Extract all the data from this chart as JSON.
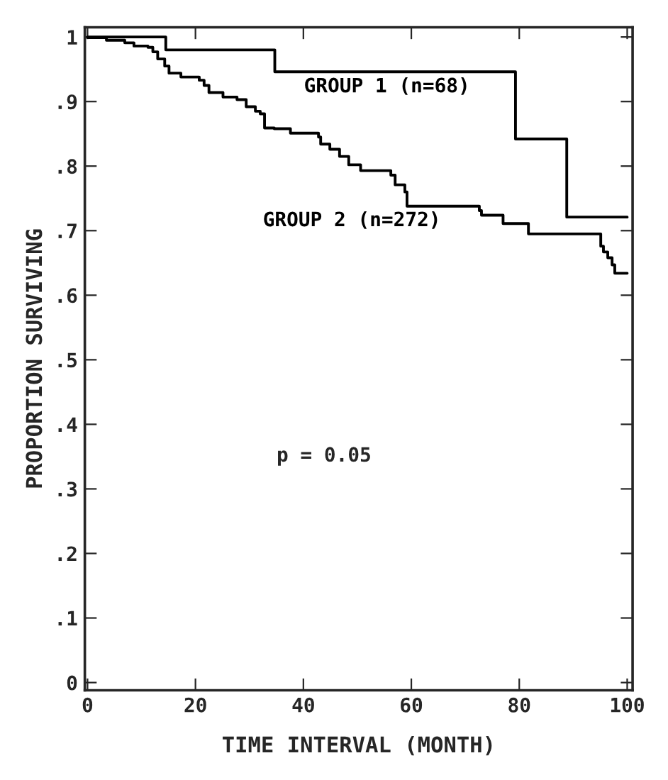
{
  "chart_data": {
    "type": "step",
    "xlabel": "TIME INTERVAL (MONTH)",
    "ylabel": "PROPORTION SURVIVING",
    "annotations": [
      "p = 0.05"
    ],
    "series": [
      {
        "name": "GROUP 1 (n=68)",
        "color": "#000000",
        "x": [
          0,
          14.5,
          34.7,
          79.3,
          88.8,
          100
        ],
        "values": [
          1.0,
          0.98,
          0.946,
          0.842,
          0.721,
          0.721
        ]
      },
      {
        "name": "GROUP 2 (n=272)",
        "color": "#000000",
        "x": [
          0,
          3.5,
          6.9,
          8.6,
          11.2,
          12.1,
          13.0,
          14.3,
          15.1,
          17.3,
          20.7,
          21.6,
          22.5,
          25.1,
          27.7,
          29.4,
          31.1,
          32.0,
          32.8,
          34.6,
          37.6,
          42.8,
          43.2,
          44.9,
          46.7,
          48.4,
          50.6,
          56.2,
          57.0,
          58.8,
          59.2,
          72.6,
          73.0,
          77.0,
          81.7,
          95.1,
          95.6,
          96.4,
          97.2,
          97.7,
          100
        ],
        "values": [
          0.999,
          0.995,
          0.991,
          0.986,
          0.984,
          0.977,
          0.966,
          0.955,
          0.944,
          0.938,
          0.933,
          0.925,
          0.914,
          0.907,
          0.903,
          0.892,
          0.885,
          0.881,
          0.859,
          0.858,
          0.851,
          0.845,
          0.834,
          0.826,
          0.815,
          0.802,
          0.793,
          0.786,
          0.771,
          0.76,
          0.738,
          0.731,
          0.724,
          0.711,
          0.695,
          0.676,
          0.667,
          0.658,
          0.647,
          0.634,
          0.634
        ]
      }
    ],
    "xlim": [
      -0.5,
      101
    ],
    "ylim": [
      -0.012,
      1.015
    ],
    "xticks": [
      0,
      20,
      40,
      60,
      80,
      100
    ],
    "yticks": [
      0,
      {
        "value": 0.1,
        "label": ".1"
      },
      {
        "value": 0.2,
        "label": ".2"
      },
      {
        "value": 0.3,
        "label": ".3"
      },
      {
        "value": 0.4,
        "label": ".4"
      },
      {
        "value": 0.5,
        "label": ".5"
      },
      {
        "value": 0.6,
        "label": ".6"
      },
      {
        "value": 0.7,
        "label": ".7"
      },
      {
        "value": 0.8,
        "label": ".8"
      },
      {
        "value": 0.9,
        "label": ".9"
      },
      1
    ],
    "grid": false,
    "legend": false
  }
}
